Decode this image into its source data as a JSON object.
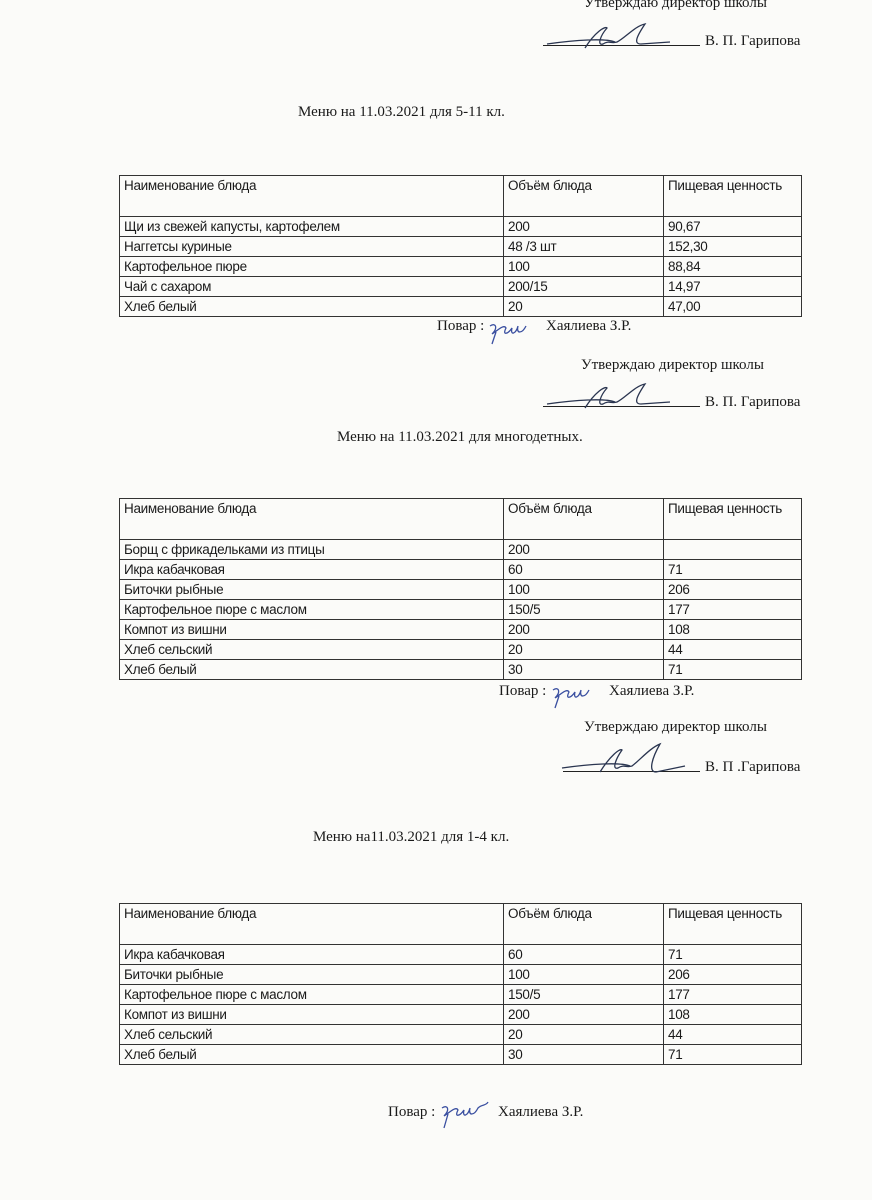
{
  "columns": [
    "Наименование блюда",
    "Объём блюда",
    "Пищевая ценность"
  ],
  "sections": [
    {
      "approval": {
        "text": "Утверждаю директор школы",
        "director": "В. П. Гарипова"
      },
      "title": "Меню на 11.03.2021 для 5-11 кл.",
      "rows": [
        [
          "Щи из свежей капусты, картофелем",
          "200",
          "90,67"
        ],
        [
          "Наггетсы куриные",
          "48 /3 шт",
          "152,30"
        ],
        [
          "Картофельное пюре",
          "100",
          "88,84"
        ],
        [
          "Чай с сахаром",
          "200/15",
          "14,97"
        ],
        [
          "Хлеб белый",
          "20",
          "47,00"
        ]
      ],
      "cook": {
        "label": "Повар :",
        "name": "Хаялиева З.Р."
      }
    },
    {
      "approval": {
        "text": "Утверждаю директор школы",
        "director": "В. П. Гарипова"
      },
      "title": "Меню на 11.03.2021 для многодетных.",
      "rows": [
        [
          "Борщ с фрикадельками из птицы",
          "200",
          ""
        ],
        [
          "Икра кабачковая",
          "60",
          "71"
        ],
        [
          "Биточки рыбные",
          "100",
          "206"
        ],
        [
          "Картофельное пюре с маслом",
          "150/5",
          "177"
        ],
        [
          "Компот из вишни",
          "200",
          "108"
        ],
        [
          "Хлеб сельский",
          "20",
          "44"
        ],
        [
          "Хлеб белый",
          "30",
          "71"
        ]
      ],
      "cook": {
        "label": "Повар :",
        "name": "Хаялиева З.Р."
      }
    },
    {
      "approval": {
        "text": "Утверждаю директор школы",
        "director": "В. П .Гарипова"
      },
      "title": "Меню на11.03.2021 для 1-4 кл.",
      "rows": [
        [
          "Икра кабачковая",
          "60",
          "71"
        ],
        [
          "Биточки рыбные",
          "100",
          "206"
        ],
        [
          "Картофельное пюре с маслом",
          "150/5",
          "177"
        ],
        [
          "Компот из вишни",
          "200",
          "108"
        ],
        [
          "Хлеб сельский",
          "20",
          "44"
        ],
        [
          "Хлеб белый",
          "30",
          "71"
        ]
      ],
      "cook": {
        "label": "Повар :",
        "name": "Хаялиева З.Р."
      }
    }
  ]
}
